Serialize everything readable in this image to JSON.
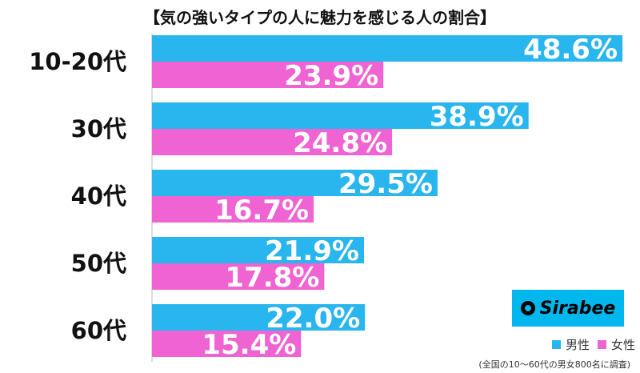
{
  "chart_data": {
    "type": "bar",
    "orientation": "horizontal",
    "title": "【気の強いタイプの人に魅力を感じる人の割合】",
    "categories": [
      "10-20代",
      "30代",
      "40代",
      "50代",
      "60代"
    ],
    "series": [
      {
        "name": "男性",
        "color": "#29b6ee",
        "values": [
          48.6,
          38.9,
          29.5,
          21.9,
          22.0
        ],
        "labels": [
          "48.6%",
          "38.9%",
          "29.5%",
          "21.9%",
          "22.0%"
        ]
      },
      {
        "name": "女性",
        "color": "#f063d2",
        "values": [
          23.9,
          24.8,
          16.7,
          17.8,
          15.4
        ],
        "labels": [
          "23.9%",
          "24.8%",
          "16.7%",
          "17.8%",
          "15.4%"
        ]
      }
    ],
    "xlim": [
      0,
      50
    ],
    "legend": "bottom-right",
    "note": "(全国の10〜60代の男女800名に調査)"
  },
  "logo": {
    "text": "Sirabee"
  }
}
